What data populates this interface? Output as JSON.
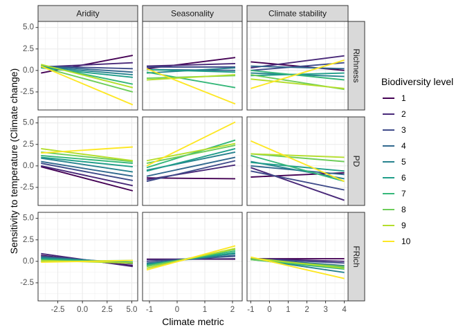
{
  "chart_data": {
    "type": "line",
    "xlabel": "Climate metric",
    "ylabel": "Sensitivity to temperature (Climate change)",
    "ylim": [
      -4.6,
      5.7
    ],
    "yticks": [
      -2.5,
      0.0,
      2.5,
      5.0
    ],
    "ytick_labels": [
      "-2.5",
      "0.0",
      "2.5",
      "5.0"
    ],
    "grid": true,
    "legend_title": "Biodiversity level",
    "legend_position": "right",
    "levels": [
      "1",
      "2",
      "3",
      "4",
      "5",
      "6",
      "7",
      "8",
      "9",
      "10"
    ],
    "colors": [
      "#440154",
      "#482878",
      "#3E4A89",
      "#31688E",
      "#26828E",
      "#1F9E89",
      "#35B779",
      "#6DCD59",
      "#B4DE2C",
      "#FDE725"
    ],
    "columns": [
      {
        "label": "Aridity",
        "xlim": [
          -4.5,
          5.6
        ],
        "xticks": [
          -2.5,
          0.0,
          2.5,
          5.0
        ],
        "xtick_labels": [
          "-2.5",
          "0.0",
          "2.5",
          "5.0"
        ]
      },
      {
        "label": "Seasonality",
        "xlim": [
          -1.25,
          2.35
        ],
        "xticks": [
          -1,
          0,
          1,
          2
        ],
        "xtick_labels": [
          "-1",
          "0",
          "1",
          "2"
        ]
      },
      {
        "label": "Climate stability",
        "xlim": [
          -1.2,
          4.2
        ],
        "xticks": [
          -1,
          0,
          1,
          2,
          3,
          4
        ],
        "xtick_labels": [
          "-1",
          "0",
          "1",
          "2",
          "3",
          "4"
        ]
      }
    ],
    "rows": [
      {
        "label": "Richness"
      },
      {
        "label": "PD"
      },
      {
        "label": "FRich"
      }
    ],
    "panels": [
      [
        {
          "x_range": [
            -4.2,
            5.1
          ],
          "series": [
            {
              "level": "1",
              "y": [
                -0.3,
                1.75
              ]
            },
            {
              "level": "2",
              "y": [
                0.4,
                0.9
              ]
            },
            {
              "level": "3",
              "y": [
                0.5,
                0.2
              ]
            },
            {
              "level": "4",
              "y": [
                0.5,
                -0.2
              ]
            },
            {
              "level": "5",
              "y": [
                0.4,
                -0.5
              ]
            },
            {
              "level": "6",
              "y": [
                0.3,
                -0.8
              ]
            },
            {
              "level": "7",
              "y": [
                0.6,
                -1.6
              ]
            },
            {
              "level": "8",
              "y": [
                0.4,
                -2.5
              ]
            },
            {
              "level": "9",
              "y": [
                0.7,
                -2.0
              ]
            },
            {
              "level": "10",
              "y": [
                0.5,
                -4.0
              ]
            }
          ]
        },
        {
          "x_range": [
            -1.1,
            2.1
          ],
          "series": [
            {
              "level": "1",
              "y": [
                0.2,
                1.5
              ]
            },
            {
              "level": "2",
              "y": [
                0.5,
                0.8
              ]
            },
            {
              "level": "3",
              "y": [
                0.4,
                0.4
              ]
            },
            {
              "level": "4",
              "y": [
                0.1,
                0.0
              ]
            },
            {
              "level": "5",
              "y": [
                -0.3,
                0.3
              ]
            },
            {
              "level": "6",
              "y": [
                0.1,
                -0.2
              ]
            },
            {
              "level": "7",
              "y": [
                -0.2,
                -2.0
              ]
            },
            {
              "level": "8",
              "y": [
                -0.9,
                -0.6
              ]
            },
            {
              "level": "9",
              "y": [
                -1.1,
                -0.5
              ]
            },
            {
              "level": "10",
              "y": [
                0.2,
                -3.9
              ]
            }
          ]
        },
        {
          "x_range": [
            -1.0,
            4.0
          ],
          "series": [
            {
              "level": "1",
              "y": [
                1.0,
                0.0
              ]
            },
            {
              "level": "2",
              "y": [
                0.3,
                1.7
              ]
            },
            {
              "level": "3",
              "y": [
                0.0,
                0.9
              ]
            },
            {
              "level": "4",
              "y": [
                0.5,
                0.2
              ]
            },
            {
              "level": "5",
              "y": [
                -0.3,
                -0.7
              ]
            },
            {
              "level": "6",
              "y": [
                -0.6,
                -0.3
              ]
            },
            {
              "level": "7",
              "y": [
                0.0,
                -1.1
              ]
            },
            {
              "level": "8",
              "y": [
                -0.5,
                -2.2
              ]
            },
            {
              "level": "9",
              "y": [
                -1.0,
                -2.1
              ]
            },
            {
              "level": "10",
              "y": [
                -2.1,
                1.2
              ]
            }
          ]
        }
      ],
      [
        {
          "x_range": [
            -4.2,
            5.1
          ],
          "series": [
            {
              "level": "1",
              "y": [
                -0.1,
                -2.9
              ]
            },
            {
              "level": "2",
              "y": [
                0.0,
                -2.3
              ]
            },
            {
              "level": "3",
              "y": [
                0.3,
                -1.7
              ]
            },
            {
              "level": "4",
              "y": [
                0.5,
                -1.2
              ]
            },
            {
              "level": "5",
              "y": [
                0.9,
                -0.7
              ]
            },
            {
              "level": "6",
              "y": [
                1.0,
                -0.1
              ]
            },
            {
              "level": "7",
              "y": [
                1.2,
                0.3
              ]
            },
            {
              "level": "8",
              "y": [
                1.6,
                0.5
              ]
            },
            {
              "level": "9",
              "y": [
                2.0,
                0.6
              ]
            },
            {
              "level": "10",
              "y": [
                1.5,
                2.2
              ]
            }
          ]
        },
        {
          "x_range": [
            -1.1,
            2.1
          ],
          "series": [
            {
              "level": "1",
              "y": [
                -1.4,
                -1.5
              ]
            },
            {
              "level": "2",
              "y": [
                -1.6,
                0.1
              ]
            },
            {
              "level": "3",
              "y": [
                -1.8,
                0.6
              ]
            },
            {
              "level": "4",
              "y": [
                -1.2,
                1.0
              ]
            },
            {
              "level": "5",
              "y": [
                -0.5,
                1.6
              ]
            },
            {
              "level": "6",
              "y": [
                -0.6,
                2.0
              ]
            },
            {
              "level": "7",
              "y": [
                -0.2,
                3.0
              ]
            },
            {
              "level": "8",
              "y": [
                0.3,
                2.4
              ]
            },
            {
              "level": "9",
              "y": [
                0.6,
                2.6
              ]
            },
            {
              "level": "10",
              "y": [
                0.0,
                5.1
              ]
            }
          ]
        },
        {
          "x_range": [
            -1.0,
            4.0
          ],
          "series": [
            {
              "level": "1",
              "y": [
                -1.3,
                -0.8
              ]
            },
            {
              "level": "2",
              "y": [
                -0.2,
                -4.0
              ]
            },
            {
              "level": "3",
              "y": [
                -0.6,
                -2.8
              ]
            },
            {
              "level": "4",
              "y": [
                0.0,
                -1.0
              ]
            },
            {
              "level": "5",
              "y": [
                0.5,
                -1.5
              ]
            },
            {
              "level": "6",
              "y": [
                0.4,
                -0.6
              ]
            },
            {
              "level": "7",
              "y": [
                1.2,
                -1.8
              ]
            },
            {
              "level": "8",
              "y": [
                1.4,
                0.5
              ]
            },
            {
              "level": "9",
              "y": [
                1.4,
                1.0
              ]
            },
            {
              "level": "10",
              "y": [
                2.9,
                -1.8
              ]
            }
          ]
        }
      ],
      [
        {
          "x_range": [
            -4.2,
            5.1
          ],
          "series": [
            {
              "level": "1",
              "y": [
                0.7,
                -0.5
              ]
            },
            {
              "level": "2",
              "y": [
                0.9,
                -0.6
              ]
            },
            {
              "level": "3",
              "y": [
                0.6,
                -0.3
              ]
            },
            {
              "level": "4",
              "y": [
                0.5,
                -0.2
              ]
            },
            {
              "level": "5",
              "y": [
                0.4,
                -0.2
              ]
            },
            {
              "level": "6",
              "y": [
                0.3,
                -0.1
              ]
            },
            {
              "level": "7",
              "y": [
                0.2,
                -0.1
              ]
            },
            {
              "level": "8",
              "y": [
                0.0,
                0.1
              ]
            },
            {
              "level": "9",
              "y": [
                0.1,
                -0.2
              ]
            },
            {
              "level": "10",
              "y": [
                -0.1,
                0.1
              ]
            }
          ]
        },
        {
          "x_range": [
            -1.1,
            2.1
          ],
          "series": [
            {
              "level": "1",
              "y": [
                0.25,
                0.25
              ]
            },
            {
              "level": "2",
              "y": [
                0.2,
                0.3
              ]
            },
            {
              "level": "3",
              "y": [
                0.0,
                0.6
              ]
            },
            {
              "level": "4",
              "y": [
                -0.2,
                0.7
              ]
            },
            {
              "level": "5",
              "y": [
                -0.3,
                0.9
              ]
            },
            {
              "level": "6",
              "y": [
                -0.4,
                1.0
              ]
            },
            {
              "level": "7",
              "y": [
                -0.5,
                1.2
              ]
            },
            {
              "level": "8",
              "y": [
                -0.6,
                1.4
              ]
            },
            {
              "level": "9",
              "y": [
                -0.8,
                1.5
              ]
            },
            {
              "level": "10",
              "y": [
                -1.0,
                1.8
              ]
            }
          ]
        },
        {
          "x_range": [
            -1.0,
            4.0
          ],
          "series": [
            {
              "level": "1",
              "y": [
                0.3,
                0.3
              ]
            },
            {
              "level": "2",
              "y": [
                0.3,
                0.0
              ]
            },
            {
              "level": "3",
              "y": [
                0.3,
                -0.2
              ]
            },
            {
              "level": "4",
              "y": [
                0.3,
                -0.5
              ]
            },
            {
              "level": "5",
              "y": [
                0.3,
                -1.3
              ]
            },
            {
              "level": "6",
              "y": [
                0.2,
                -0.7
              ]
            },
            {
              "level": "7",
              "y": [
                0.2,
                -0.9
              ]
            },
            {
              "level": "8",
              "y": [
                0.2,
                -0.6
              ]
            },
            {
              "level": "9",
              "y": [
                0.4,
                -0.8
              ]
            },
            {
              "level": "10",
              "y": [
                0.5,
                -2.0
              ]
            }
          ]
        }
      ]
    ]
  }
}
